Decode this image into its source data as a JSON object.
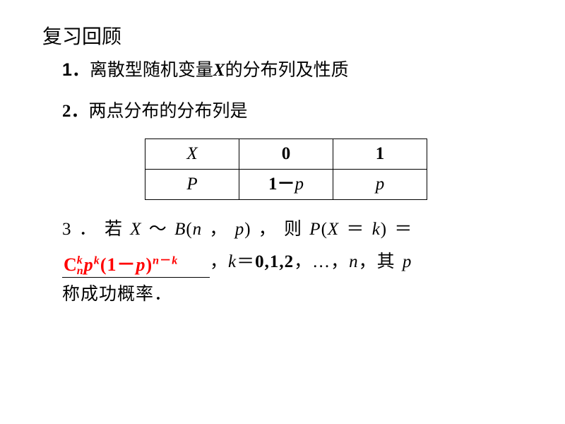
{
  "title": "复习回顾",
  "point1": {
    "num": "1．",
    "prefix": "离散型随机变量",
    "var": "X",
    "suffix": "的分布列及性质"
  },
  "point2": {
    "num": "2．",
    "text": "两点分布的分布列是",
    "table": {
      "r0c0": "X",
      "r0c1": "0",
      "r0c2": "1",
      "r1c0": "P",
      "r1c1": "1－p",
      "r1c2": "p"
    }
  },
  "point3": {
    "row1": {
      "seg1": "3 ． 若  ",
      "X": "X",
      "tilde": " ～ ",
      "B": "B",
      "open": "(",
      "n": "n",
      "comma": " ， ",
      "p": "p",
      "close": ")",
      "seg2": " ， 则  ",
      "P": "P",
      "open2": "(",
      "X2": "X",
      "eq": " ＝ ",
      "k": "k",
      "close2": ")",
      "eq2": " ＝"
    },
    "formula": {
      "C": "C",
      "sup1": "k",
      "sub1": "n",
      "p": "p",
      "sup2": "k",
      "open": "(1－",
      "pv": "p",
      "close": ")",
      "exp_n": "n",
      "exp_minus": "－",
      "exp_k": "k"
    },
    "row2_tail": "，k＝0,1,2，…，n，其 p",
    "row3": "称成功概率．"
  },
  "style": {
    "text_color": "#000000",
    "formula_color": "#ff0000",
    "background": "#ffffff",
    "title_fontsize": 28,
    "body_fontsize": 25,
    "table_cell_width": 130,
    "table_cell_height": 40,
    "table_border": "#000000"
  }
}
